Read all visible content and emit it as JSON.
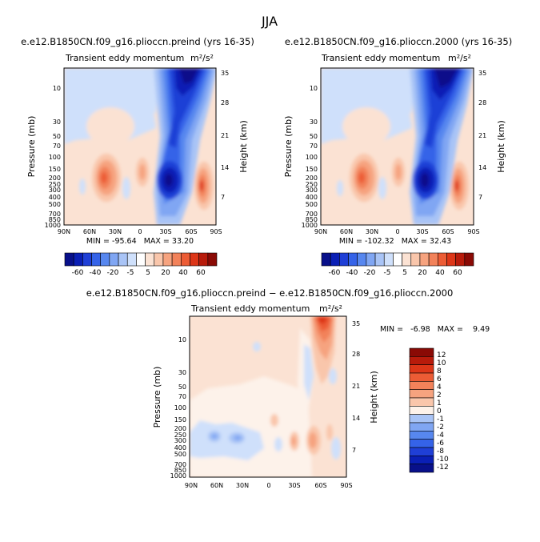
{
  "figure": {
    "title": "JJA"
  },
  "colors": {
    "neg": [
      "#08108a",
      "#0a1fb5",
      "#1f3fd6",
      "#3563e8",
      "#5787ef",
      "#80a6f3",
      "#a9c4f6",
      "#cfe0fb"
    ],
    "pos": [
      "#fbe2d3",
      "#f9c6ab",
      "#f6a37f",
      "#f2825a",
      "#ec5c35",
      "#dd3618",
      "#b81b0b",
      "#8a0a05"
    ],
    "diff_neg": [
      "#08108a",
      "#0a1fb5",
      "#1f3fd6",
      "#3563e8",
      "#5787ef",
      "#80a6f3",
      "#a9c4f6",
      "#cfe0fb"
    ],
    "diff_zero": "#fdf2ea",
    "diff_pos": [
      "#fbe2d3",
      "#f9c6ab",
      "#f6a37f",
      "#f2825a",
      "#ec5c35",
      "#dd3618",
      "#b81b0b",
      "#8a0a05"
    ]
  },
  "chart_data": [
    {
      "type": "heatmap",
      "title": "e.e12.B1850CN.f09_g16.plioccn.preind (yrs 16-35)",
      "subtitle": "Transient eddy momentum",
      "units": "m²/s²",
      "ylabel": "Pressure (mb)",
      "ylabel_right": "Height (km)",
      "x_ticks": [
        "90N",
        "60N",
        "30N",
        "0",
        "30S",
        "60S",
        "90S"
      ],
      "y_ticks": [
        "10",
        "30",
        "50",
        "70",
        "100",
        "150",
        "200",
        "250",
        "300",
        "400",
        "500",
        "700",
        "850",
        "1000"
      ],
      "y_ticks_right": [
        "35",
        "28",
        "21",
        "14",
        "7"
      ],
      "stats": "MIN = -95.64   MAX = 33.20",
      "colorbar_labels": [
        "-60",
        "-40",
        "-20",
        "-5",
        "5",
        "20",
        "40",
        "60"
      ]
    },
    {
      "type": "heatmap",
      "title": "e.e12.B1850CN.f09_g16.plioccn.2000 (yrs 16-35)",
      "subtitle": "Transient eddy momentum",
      "units": "m²/s²",
      "ylabel": "Pressure (mb)",
      "ylabel_right": "Height (km)",
      "x_ticks": [
        "90N",
        "60N",
        "30N",
        "0",
        "30S",
        "60S",
        "90S"
      ],
      "y_ticks": [
        "10",
        "30",
        "50",
        "70",
        "100",
        "150",
        "200",
        "250",
        "300",
        "400",
        "500",
        "700",
        "850",
        "1000"
      ],
      "y_ticks_right": [
        "35",
        "28",
        "21",
        "14",
        "7"
      ],
      "stats": "MIN = -102.32   MAX = 32.43",
      "colorbar_labels": [
        "-60",
        "-40",
        "-20",
        "-5",
        "5",
        "20",
        "40",
        "60"
      ]
    },
    {
      "type": "heatmap",
      "title": "e.e12.B1850CN.f09_g16.plioccn.preind − e.e12.B1850CN.f09_g16.plioccn.2000",
      "subtitle": "Transient eddy momentum",
      "units": "m²/s²",
      "ylabel": "Pressure (mb)",
      "ylabel_right": "Height (km)",
      "x_ticks": [
        "90N",
        "60N",
        "30N",
        "0",
        "30S",
        "60S",
        "90S"
      ],
      "y_ticks": [
        "10",
        "30",
        "50",
        "70",
        "100",
        "150",
        "200",
        "250",
        "300",
        "400",
        "500",
        "700",
        "850",
        "1000"
      ],
      "y_ticks_right": [
        "35",
        "28",
        "21",
        "14",
        "7"
      ],
      "stats": "MIN =   -6.98   MAX =    9.49",
      "colorbar_labels": [
        "12",
        "10",
        "8",
        "6",
        "4",
        "2",
        "1",
        "0",
        "-1",
        "-2",
        "-4",
        "-6",
        "-8",
        "-10",
        "-12"
      ]
    }
  ]
}
